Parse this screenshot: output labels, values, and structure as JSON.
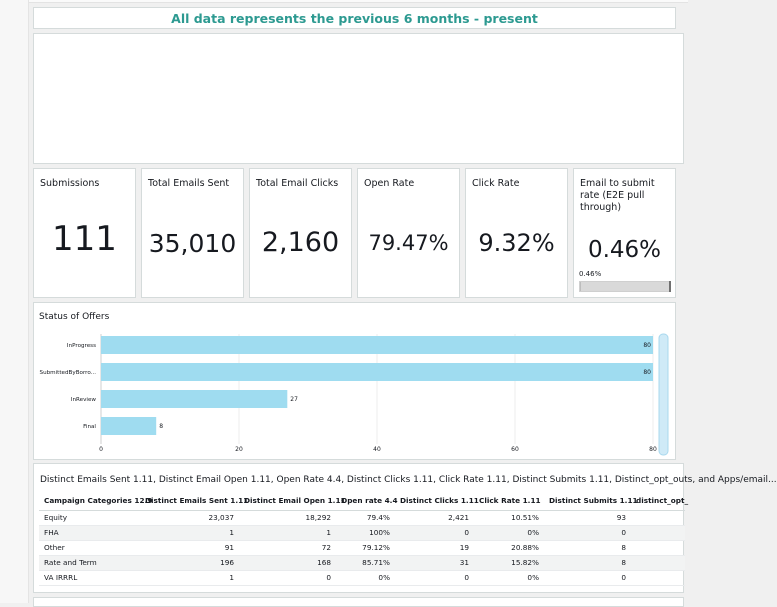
{
  "banner": {
    "text": "All data represents the previous 6 months - present"
  },
  "kpis": [
    {
      "title": "Submissions",
      "value": "111"
    },
    {
      "title": "Total Emails Sent",
      "value": "35,010"
    },
    {
      "title": "Total Email Clicks",
      "value": "2,160"
    },
    {
      "title": "Open Rate",
      "value": "79.47%"
    },
    {
      "title": "Click Rate",
      "value": "9.32%"
    },
    {
      "title": "Email to submit rate (E2E pull through)",
      "value": "0.46%",
      "progress_label": "0.46%",
      "progress_fraction": 0.0046
    }
  ],
  "chart_data": {
    "type": "bar",
    "orientation": "horizontal",
    "title": "Status of Offers",
    "categories": [
      "InProgress",
      "SubmittedByBorro...",
      "InReview",
      "Final"
    ],
    "values": [
      80,
      80,
      27,
      8
    ],
    "xlim": [
      0,
      80
    ],
    "xticks": [
      "0",
      "20",
      "40",
      "60",
      "80"
    ],
    "grid": true,
    "bar_color": "#9fdcf0"
  },
  "table": {
    "caption": "Distinct Emails Sent 1.11, Distinct Email Open 1.11, Open Rate 4.4, Distinct Clicks 1.11, Click Rate 1.11, Distinct Submits 1.11, Distinct_opt_outs, and Apps/email...",
    "headers": [
      "Campaign Categories 12.9",
      "Distinct Emails Sent 1.11",
      "Distinct Email Open 1.11",
      "Open rate 4.4",
      "Distinct Clicks 1.11",
      "Click Rate 1.11",
      "Distinct Submits 1.11",
      "distinct_opt_"
    ],
    "rows": [
      [
        "Equity",
        "23,037",
        "18,292",
        "79.4%",
        "2,421",
        "10.51%",
        "93",
        ""
      ],
      [
        "FHA",
        "1",
        "1",
        "100%",
        "0",
        "0%",
        "0",
        ""
      ],
      [
        "Other",
        "91",
        "72",
        "79.12%",
        "19",
        "20.88%",
        "8",
        ""
      ],
      [
        "Rate and Term",
        "196",
        "168",
        "85.71%",
        "31",
        "15.82%",
        "8",
        ""
      ],
      [
        "VA IRRRL",
        "1",
        "0",
        "0%",
        "0",
        "0%",
        "0",
        ""
      ]
    ]
  }
}
